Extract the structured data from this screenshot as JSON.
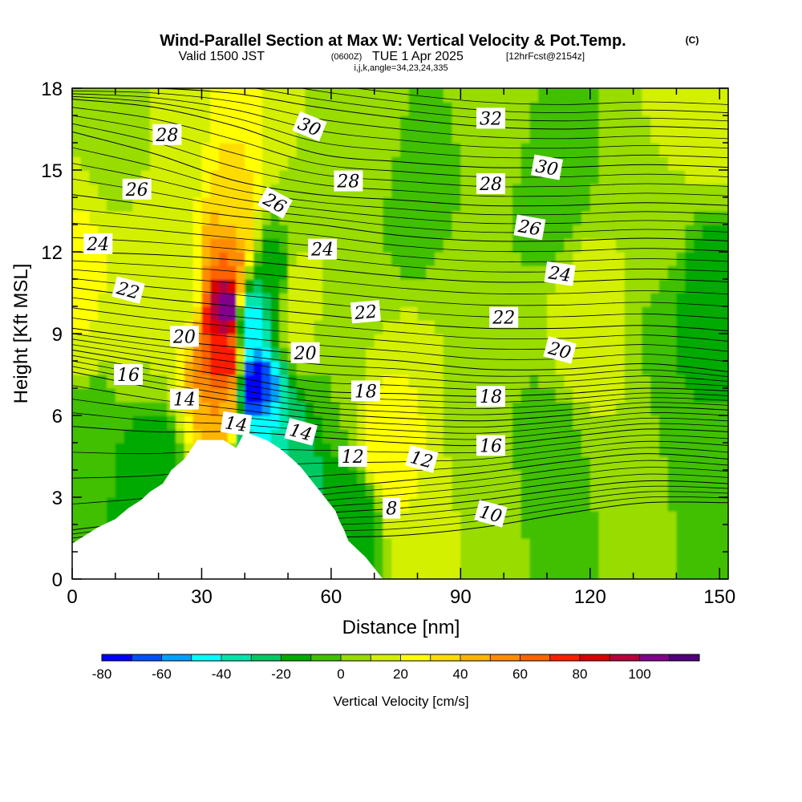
{
  "header": {
    "title_main": "Wind-Parallel Section at Max W: Vertical Velocity & Pot.Temp.",
    "title_mark": "(C)",
    "sub_a": "Valid 1500 JST",
    "sub_b": "(0600Z)",
    "sub_c": "TUE 1 Apr 2025",
    "sub_d": "[12hrFcst@2154z]",
    "sub_e": "i,j,k,angle=34,23,24,335"
  },
  "chart_data": {
    "type": "heatmap",
    "xlabel": "Distance [nm]",
    "ylabel": "Height [Kft MSL]",
    "xlim": [
      0,
      152
    ],
    "ylim": [
      0,
      18
    ],
    "x_ticks": [
      "0",
      "30",
      "60",
      "90",
      "120",
      "150"
    ],
    "y_ticks": [
      "0",
      "3",
      "6",
      "9",
      "12",
      "15",
      "18"
    ],
    "colorbar": {
      "label": "Vertical Velocity [cm/s]",
      "ticks": [
        "-80",
        "-60",
        "-40",
        "-20",
        "0",
        "20",
        "40",
        "60",
        "80",
        "100"
      ],
      "bins": [
        -80,
        -70,
        -60,
        -50,
        -40,
        -30,
        -20,
        -10,
        0,
        10,
        20,
        30,
        40,
        50,
        60,
        70,
        80,
        90,
        100,
        110
      ],
      "colors": [
        "#0000ff",
        "#0050ff",
        "#00a0ff",
        "#00ffff",
        "#00e6aa",
        "#00c864",
        "#00aa00",
        "#40c000",
        "#98dc00",
        "#d2f000",
        "#ffff00",
        "#ffdc00",
        "#ffb400",
        "#ff8c00",
        "#ff6400",
        "#ff1e00",
        "#dc0000",
        "#b4003c",
        "#82008c",
        "#50007a"
      ]
    },
    "terrain_kft": [
      [
        0,
        1.3
      ],
      [
        3,
        1.6
      ],
      [
        6,
        1.9
      ],
      [
        10,
        2.2
      ],
      [
        13,
        2.6
      ],
      [
        16,
        2.9
      ],
      [
        18,
        3.2
      ],
      [
        21,
        3.5
      ],
      [
        23,
        4.0
      ],
      [
        26,
        4.4
      ],
      [
        29,
        5.1
      ],
      [
        35,
        5.1
      ],
      [
        38,
        4.8
      ],
      [
        40,
        5.4
      ],
      [
        45,
        5.1
      ],
      [
        48,
        4.8
      ],
      [
        51,
        4.4
      ],
      [
        53,
        4.1
      ],
      [
        55,
        3.7
      ],
      [
        57,
        3.3
      ],
      [
        59,
        2.9
      ],
      [
        61,
        2.5
      ],
      [
        62,
        2.1
      ],
      [
        63,
        1.8
      ],
      [
        64,
        1.4
      ],
      [
        66,
        1.1
      ],
      [
        68,
        0.8
      ],
      [
        70,
        0.4
      ],
      [
        72,
        0.0
      ]
    ],
    "w_cells": [
      {
        "x": 0,
        "y": 11,
        "w": 30
      },
      {
        "x": 2,
        "y": 13,
        "w": 20
      },
      {
        "x": 3,
        "y": 9,
        "w": 20
      },
      {
        "x": 10,
        "y": 10,
        "w": 20
      },
      {
        "x": 15,
        "y": 9,
        "w": 10
      },
      {
        "x": 25,
        "y": 11,
        "w": 10
      },
      {
        "x": 36,
        "y": 10,
        "w": 110
      },
      {
        "x": 35.5,
        "y": 8,
        "w": 80
      },
      {
        "x": 36,
        "y": 12,
        "w": 60
      },
      {
        "x": 35,
        "y": 6.5,
        "w": 50
      },
      {
        "x": 37,
        "y": 13.5,
        "w": 30
      },
      {
        "x": 42,
        "y": 7,
        "w": -80
      },
      {
        "x": 41,
        "y": 9.5,
        "w": -50
      },
      {
        "x": 43,
        "y": 5,
        "w": -40
      },
      {
        "x": 46,
        "y": 11,
        "w": -20
      },
      {
        "x": 50,
        "y": 4,
        "w": -30
      },
      {
        "x": 52,
        "y": 10,
        "w": 20
      },
      {
        "x": 56,
        "y": 14,
        "w": 10
      },
      {
        "x": 62,
        "y": 8,
        "w": 0
      },
      {
        "x": 65,
        "y": 2,
        "w": -20
      },
      {
        "x": 73,
        "y": 5,
        "w": 30
      },
      {
        "x": 75,
        "y": 7,
        "w": 20
      },
      {
        "x": 78,
        "y": 3,
        "w": 20
      },
      {
        "x": 70,
        "y": 12,
        "w": 0
      },
      {
        "x": 68,
        "y": 16,
        "w": 10
      },
      {
        "x": 80,
        "y": 14,
        "w": -10
      },
      {
        "x": 90,
        "y": 10,
        "w": 10
      },
      {
        "x": 95,
        "y": 6,
        "w": 0
      },
      {
        "x": 95,
        "y": 2,
        "w": 10
      },
      {
        "x": 100,
        "y": 17,
        "w": 10
      },
      {
        "x": 110,
        "y": 15,
        "w": -10
      },
      {
        "x": 112,
        "y": 4,
        "w": -10
      },
      {
        "x": 120,
        "y": 9,
        "w": 20
      },
      {
        "x": 125,
        "y": 6,
        "w": 10
      },
      {
        "x": 128,
        "y": 1,
        "w": 0
      },
      {
        "x": 135,
        "y": 13,
        "w": 10
      },
      {
        "x": 140,
        "y": 9,
        "w": -10
      },
      {
        "x": 148,
        "y": 10,
        "w": -20
      },
      {
        "x": 148,
        "y": 17.5,
        "w": 20
      },
      {
        "x": 150,
        "y": 3,
        "w": 0
      },
      {
        "x": 18,
        "y": 4,
        "w": -20
      },
      {
        "x": 8,
        "y": 16,
        "w": 0
      },
      {
        "x": 5,
        "y": 6,
        "w": -10
      },
      {
        "x": 24,
        "y": 15,
        "w": 10
      },
      {
        "x": 60,
        "y": 0.8,
        "w": -20
      }
    ],
    "theta_levels": [
      {
        "label": "8",
        "h": [
          0.6,
          0.9,
          1.2,
          1.5,
          1.6,
          1.9,
          2.4,
          2.8,
          2.8
        ]
      },
      {
        "label": "10",
        "h": [
          1.2,
          1.6,
          2.0,
          2.4,
          2.6,
          2.9,
          3.3,
          3.6,
          3.5
        ]
      },
      {
        "label": "12",
        "h": [
          1.8,
          2.2,
          2.8,
          3.3,
          3.6,
          3.9,
          4.3,
          4.6,
          4.4
        ]
      },
      {
        "label": "14",
        "h": [
          5.6,
          5.4,
          5.4,
          5.2,
          5.0,
          4.9,
          5.2,
          5.5,
          5.4
        ]
      },
      {
        "label": "16",
        "h": [
          7.6,
          7.0,
          6.5,
          6.1,
          5.9,
          5.8,
          6.0,
          6.3,
          6.2
        ]
      },
      {
        "label": "18",
        "h": [
          8.4,
          7.9,
          7.4,
          6.9,
          6.8,
          6.7,
          6.8,
          7.0,
          6.9
        ]
      },
      {
        "label": "20",
        "h": [
          9.2,
          8.8,
          8.5,
          8.2,
          8.0,
          7.7,
          7.7,
          7.9,
          7.6
        ]
      },
      {
        "label": "22",
        "h": [
          10.7,
          10.3,
          10.0,
          9.7,
          9.4,
          9.2,
          9.2,
          9.3,
          9.1
        ]
      },
      {
        "label": "24",
        "h": [
          12.0,
          11.9,
          11.7,
          11.4,
          11.1,
          10.9,
          10.9,
          11.0,
          10.9
        ]
      },
      {
        "label": "26",
        "h": [
          14.1,
          13.7,
          13.3,
          13.0,
          12.6,
          12.4,
          12.4,
          12.5,
          12.4
        ]
      },
      {
        "label": "28",
        "h": [
          16.4,
          15.6,
          14.6,
          14.1,
          13.9,
          13.7,
          13.7,
          13.8,
          13.7
        ]
      },
      {
        "label": "30",
        "h": [
          17.6,
          17.3,
          16.6,
          15.6,
          15.3,
          15.1,
          15.1,
          15.2,
          15.1
        ]
      },
      {
        "label": "32",
        "h": [
          18.0,
          18.0,
          17.8,
          17.3,
          16.9,
          16.6,
          16.5,
          16.6,
          16.5
        ]
      }
    ],
    "theta_x": [
      0,
      19,
      38,
      57,
      76,
      95,
      114,
      133,
      152
    ],
    "contour_labels": [
      {
        "text": "28",
        "x": 22,
        "y": 16.3,
        "rot": 0
      },
      {
        "text": "26",
        "x": 15,
        "y": 14.3,
        "rot": 0
      },
      {
        "text": "24",
        "x": 6,
        "y": 12.3,
        "rot": 0
      },
      {
        "text": "22",
        "x": 13,
        "y": 10.6,
        "rot": 15
      },
      {
        "text": "20",
        "x": 26,
        "y": 8.9,
        "rot": 0
      },
      {
        "text": "16",
        "x": 13,
        "y": 7.5,
        "rot": 0
      },
      {
        "text": "14",
        "x": 26,
        "y": 6.6,
        "rot": 0
      },
      {
        "text": "30",
        "x": 55,
        "y": 16.6,
        "rot": 22
      },
      {
        "text": "26",
        "x": 47,
        "y": 13.8,
        "rot": 28
      },
      {
        "text": "28",
        "x": 64,
        "y": 14.6,
        "rot": 0
      },
      {
        "text": "24",
        "x": 58,
        "y": 12.1,
        "rot": 0
      },
      {
        "text": "22",
        "x": 68,
        "y": 9.8,
        "rot": -5
      },
      {
        "text": "20",
        "x": 54,
        "y": 8.3,
        "rot": 0
      },
      {
        "text": "18",
        "x": 68,
        "y": 6.9,
        "rot": 0
      },
      {
        "text": "14",
        "x": 38,
        "y": 5.7,
        "rot": 8
      },
      {
        "text": "14",
        "x": 53,
        "y": 5.4,
        "rot": 15
      },
      {
        "text": "12",
        "x": 65,
        "y": 4.5,
        "rot": 0
      },
      {
        "text": "12",
        "x": 81,
        "y": 4.4,
        "rot": 15
      },
      {
        "text": "8",
        "x": 74,
        "y": 2.6,
        "rot": 0
      },
      {
        "text": "32",
        "x": 97,
        "y": 16.9,
        "rot": 0
      },
      {
        "text": "30",
        "x": 110,
        "y": 15.1,
        "rot": 10
      },
      {
        "text": "28",
        "x": 97,
        "y": 14.5,
        "rot": 0
      },
      {
        "text": "26",
        "x": 106,
        "y": 12.9,
        "rot": 10
      },
      {
        "text": "24",
        "x": 113,
        "y": 11.2,
        "rot": 8
      },
      {
        "text": "22",
        "x": 100,
        "y": 9.6,
        "rot": 0
      },
      {
        "text": "20",
        "x": 113,
        "y": 8.4,
        "rot": 15
      },
      {
        "text": "18",
        "x": 97,
        "y": 6.7,
        "rot": 0
      },
      {
        "text": "16",
        "x": 97,
        "y": 4.9,
        "rot": 0
      },
      {
        "text": "10",
        "x": 97,
        "y": 2.4,
        "rot": 15
      }
    ]
  }
}
